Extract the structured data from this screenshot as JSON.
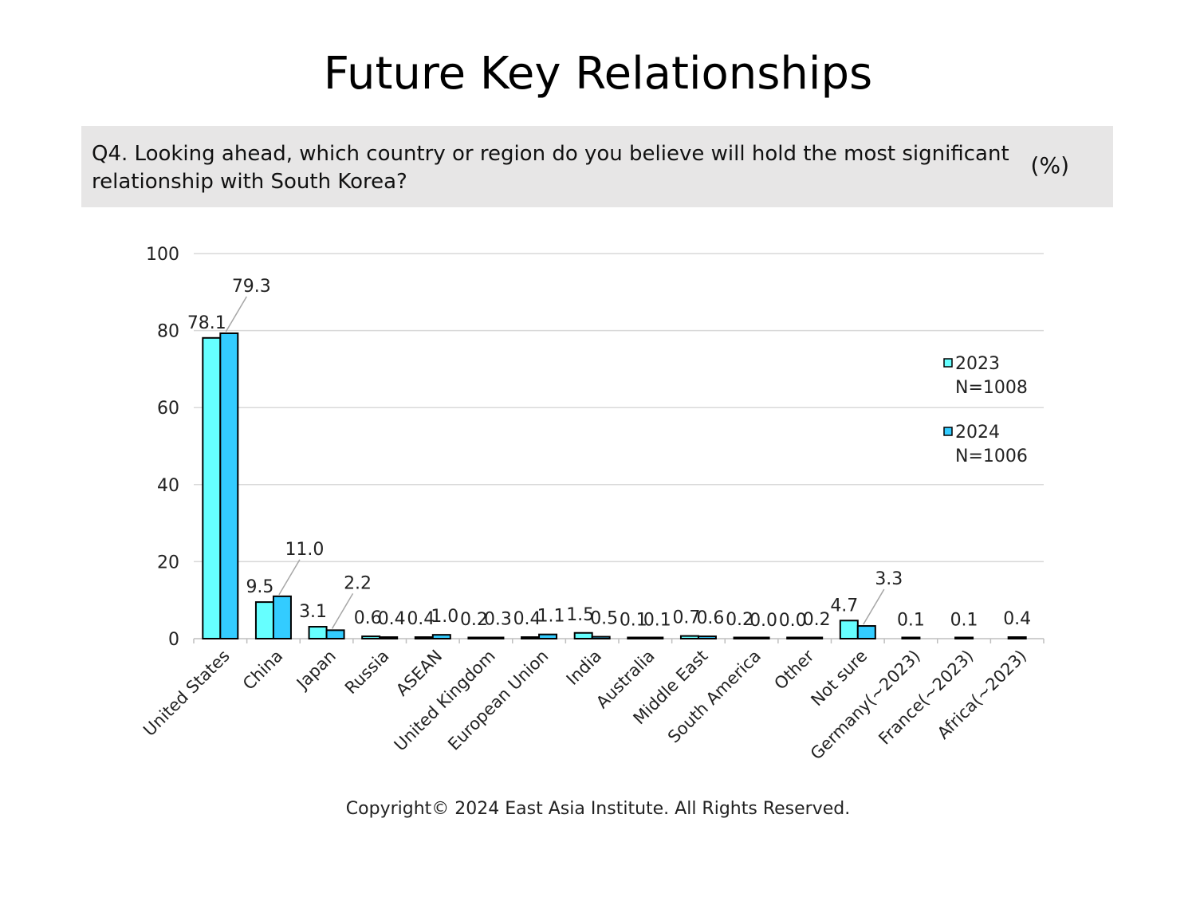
{
  "page": {
    "title": "Future Key Relationships",
    "question": "Q4. Looking ahead, which country or region do you believe will hold the most significant relationship with South Korea?",
    "unit": "(%)",
    "copyright": "Copyright© 2024 East Asia Institute. All Rights Reserved."
  },
  "colors": {
    "series_2023": "#66ffff",
    "series_2024": "#33ccff",
    "grid": "#d9d9d9",
    "bar_stroke": "#000000"
  },
  "chart_data": {
    "type": "bar",
    "categories": [
      "United States",
      "China",
      "Japan",
      "Russia",
      "ASEAN",
      "United Kingdom",
      "European Union",
      "India",
      "Australia",
      "Middle East",
      "South America",
      "Other",
      "Not sure",
      "Germany(~2023)",
      "France(~2023)",
      "Africa(~2023)"
    ],
    "series": [
      {
        "name": "2023\nN=1008",
        "values": [
          78.1,
          9.5,
          3.1,
          0.6,
          0.4,
          0.2,
          0.4,
          1.5,
          0.1,
          0.7,
          0.2,
          0.0,
          4.7,
          0.1,
          0.1,
          0.4
        ]
      },
      {
        "name": "2024\nN=1006",
        "values": [
          79.3,
          11.0,
          2.2,
          0.4,
          1.0,
          0.3,
          1.1,
          0.5,
          0.1,
          0.6,
          0.0,
          0.2,
          3.3,
          null,
          null,
          null
        ]
      }
    ],
    "yticks": [
      "0",
      "20",
      "40",
      "60",
      "80",
      "100"
    ],
    "ylim": [
      0,
      100
    ],
    "grid": true,
    "legend": {
      "position": "right",
      "items": [
        "2023",
        "N=1008",
        "2024",
        "N=1006"
      ]
    }
  }
}
